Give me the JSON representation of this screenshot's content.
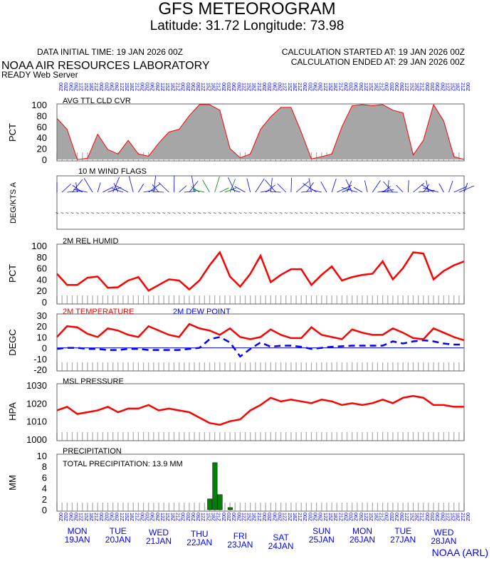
{
  "header": {
    "title": "GFS METEOROGRAM",
    "location": "Latitude: 31.72 Longitude:  73.98",
    "data_initial": "DATA INITIAL TIME: 19 JAN 2026 00Z",
    "calc_started": "CALCULATION STARTED AT: 19 JAN 2026 00Z",
    "calc_ended": "CALCULATION ENDED AT: 29 JAN 2026 00Z",
    "lab": "NOAA AIR RESOURCES LABORATORY",
    "server": "READY Web Server",
    "footer": "NOAA (ARL)"
  },
  "colors": {
    "red": "#ff0000",
    "blue": "#0000ff",
    "gray": "#a6a6a6",
    "green": "#008000"
  },
  "days": [
    {
      "dow": "MON",
      "date": "19JAN"
    },
    {
      "dow": "TUE",
      "date": "20JAN"
    },
    {
      "dow": "WED",
      "date": "21JAN"
    },
    {
      "dow": "THU",
      "date": "22JAN"
    },
    {
      "dow": "FRI",
      "date": "23JAN"
    },
    {
      "dow": "SAT",
      "date": "24JAN"
    },
    {
      "dow": "SUN",
      "date": "25JAN"
    },
    {
      "dow": "MON",
      "date": "26JAN"
    },
    {
      "dow": "TUE",
      "date": "27JAN"
    },
    {
      "dow": "WED",
      "date": "28JAN"
    }
  ],
  "chart_data": [
    {
      "type": "area",
      "title": "AVG TTL CLD CVR",
      "ylabel": "PCT",
      "ylim": [
        0,
        100
      ],
      "yticks": [
        "100",
        "80",
        "60",
        "40",
        "20",
        "0"
      ],
      "x_hours_step": 6,
      "values": [
        75,
        55,
        0,
        2,
        46,
        18,
        10,
        35,
        10,
        6,
        30,
        50,
        55,
        80,
        100,
        100,
        90,
        20,
        3,
        10,
        55,
        78,
        95,
        95,
        50,
        1,
        5,
        10,
        60,
        98,
        100,
        98,
        100,
        90,
        85,
        8,
        35,
        100,
        70,
        5,
        0
      ]
    },
    {
      "type": "wind",
      "title": "10 M  WIND FLAGS",
      "ylabel": "DEG/KTS  A"
    },
    {
      "type": "line",
      "title": "2M REL HUMID",
      "ylabel": "PCT",
      "ylim": [
        0,
        100
      ],
      "yticks": [
        "100",
        "80",
        "60",
        "40",
        "20",
        "0"
      ],
      "x_hours_step": 6,
      "values": [
        50,
        30,
        30,
        43,
        45,
        25,
        26,
        38,
        44,
        20,
        30,
        40,
        38,
        22,
        38,
        65,
        88,
        45,
        27,
        50,
        82,
        35,
        48,
        58,
        58,
        30,
        48,
        63,
        38,
        44,
        48,
        50,
        72,
        40,
        60,
        88,
        86,
        40,
        55,
        65,
        72
      ]
    },
    {
      "type": "line",
      "ylabel": "DEGC",
      "ylim": [
        -20,
        30
      ],
      "yticks": [
        "30",
        "20",
        "10",
        "0",
        "-10",
        "-20"
      ],
      "x_hours_step": 6,
      "series": [
        {
          "name": "2M TEMPERATURE",
          "values": [
            10,
            20,
            19,
            13,
            10,
            18,
            16,
            12,
            10,
            20,
            16,
            12,
            10,
            22,
            18,
            16,
            12,
            18,
            10,
            8,
            10,
            17,
            12,
            9,
            9,
            19,
            12,
            10,
            8,
            17,
            14,
            12,
            12,
            18,
            14,
            9,
            8,
            18,
            14,
            10,
            7
          ]
        },
        {
          "name": "2M  DEW POINT",
          "values": [
            -1,
            0,
            0,
            -1,
            -1,
            -2,
            -2,
            -1,
            -1,
            -2,
            -2,
            -2,
            -2,
            -1,
            0,
            8,
            10,
            5,
            -8,
            -1,
            5,
            1,
            2,
            2,
            1,
            -1,
            0,
            1,
            1.5,
            2,
            2,
            2,
            2,
            6,
            4,
            6,
            7,
            6,
            4,
            3,
            3
          ]
        }
      ]
    },
    {
      "type": "line",
      "title": "MSL PRESSURE",
      "ylabel": "HPA",
      "ylim": [
        1000,
        1030
      ],
      "yticks": [
        "1030",
        "1020",
        "1010",
        "1000"
      ],
      "x_hours_step": 6,
      "values": [
        1016,
        1018,
        1014,
        1015,
        1016,
        1018,
        1015,
        1017,
        1017,
        1019,
        1016,
        1017,
        1016,
        1015,
        1012,
        1009,
        1008,
        1010,
        1011,
        1016,
        1019,
        1023,
        1021,
        1022,
        1021,
        1020,
        1022,
        1021,
        1019,
        1020,
        1019,
        1020,
        1022,
        1020,
        1023,
        1024,
        1023,
        1019,
        1019,
        1018,
        1018
      ]
    },
    {
      "type": "bar",
      "title": "PRECIPITATION",
      "ylabel": "MM",
      "ylim": [
        0,
        10
      ],
      "yticks": [
        "10",
        "8",
        "6",
        "4",
        "2",
        "0"
      ],
      "annotation": "TOTAL PRECIPITATION:  13.9 MM",
      "bars": [
        {
          "hour": 90,
          "value": 2.0
        },
        {
          "hour": 93,
          "value": 8.7
        },
        {
          "hour": 96,
          "value": 2.8
        },
        {
          "hour": 102,
          "value": 0.4
        }
      ]
    }
  ]
}
